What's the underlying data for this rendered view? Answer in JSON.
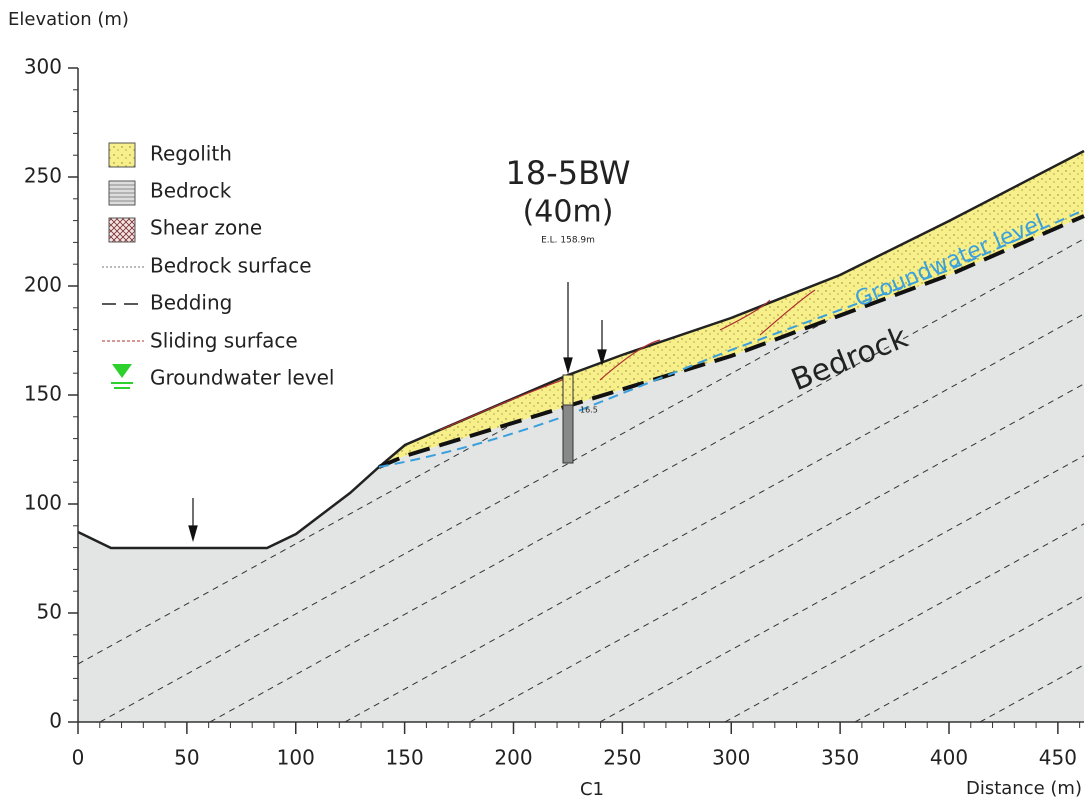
{
  "axes": {
    "y_label": "Elevation (m)",
    "x_label": "Distance (m)",
    "xlim": [
      0,
      462
    ],
    "ylim": [
      0,
      300
    ],
    "xticks": [
      0,
      50,
      100,
      150,
      200,
      250,
      300,
      350,
      400,
      450
    ],
    "yticks": [
      0,
      50,
      100,
      150,
      200,
      250,
      300
    ]
  },
  "legend": [
    "Regolith",
    "Bedrock",
    "Shear zone",
    "Bedrock surface",
    "Bedding",
    "Sliding surface",
    "Groundwater level"
  ],
  "annotations": {
    "borehole": "18-5BW",
    "depth": "(40m)",
    "elevation": "E.L. 158.9m",
    "depth_mark": "16.5",
    "bedrock": "Bedrock",
    "groundwater": "Groundwater level",
    "section": "C1"
  }
}
